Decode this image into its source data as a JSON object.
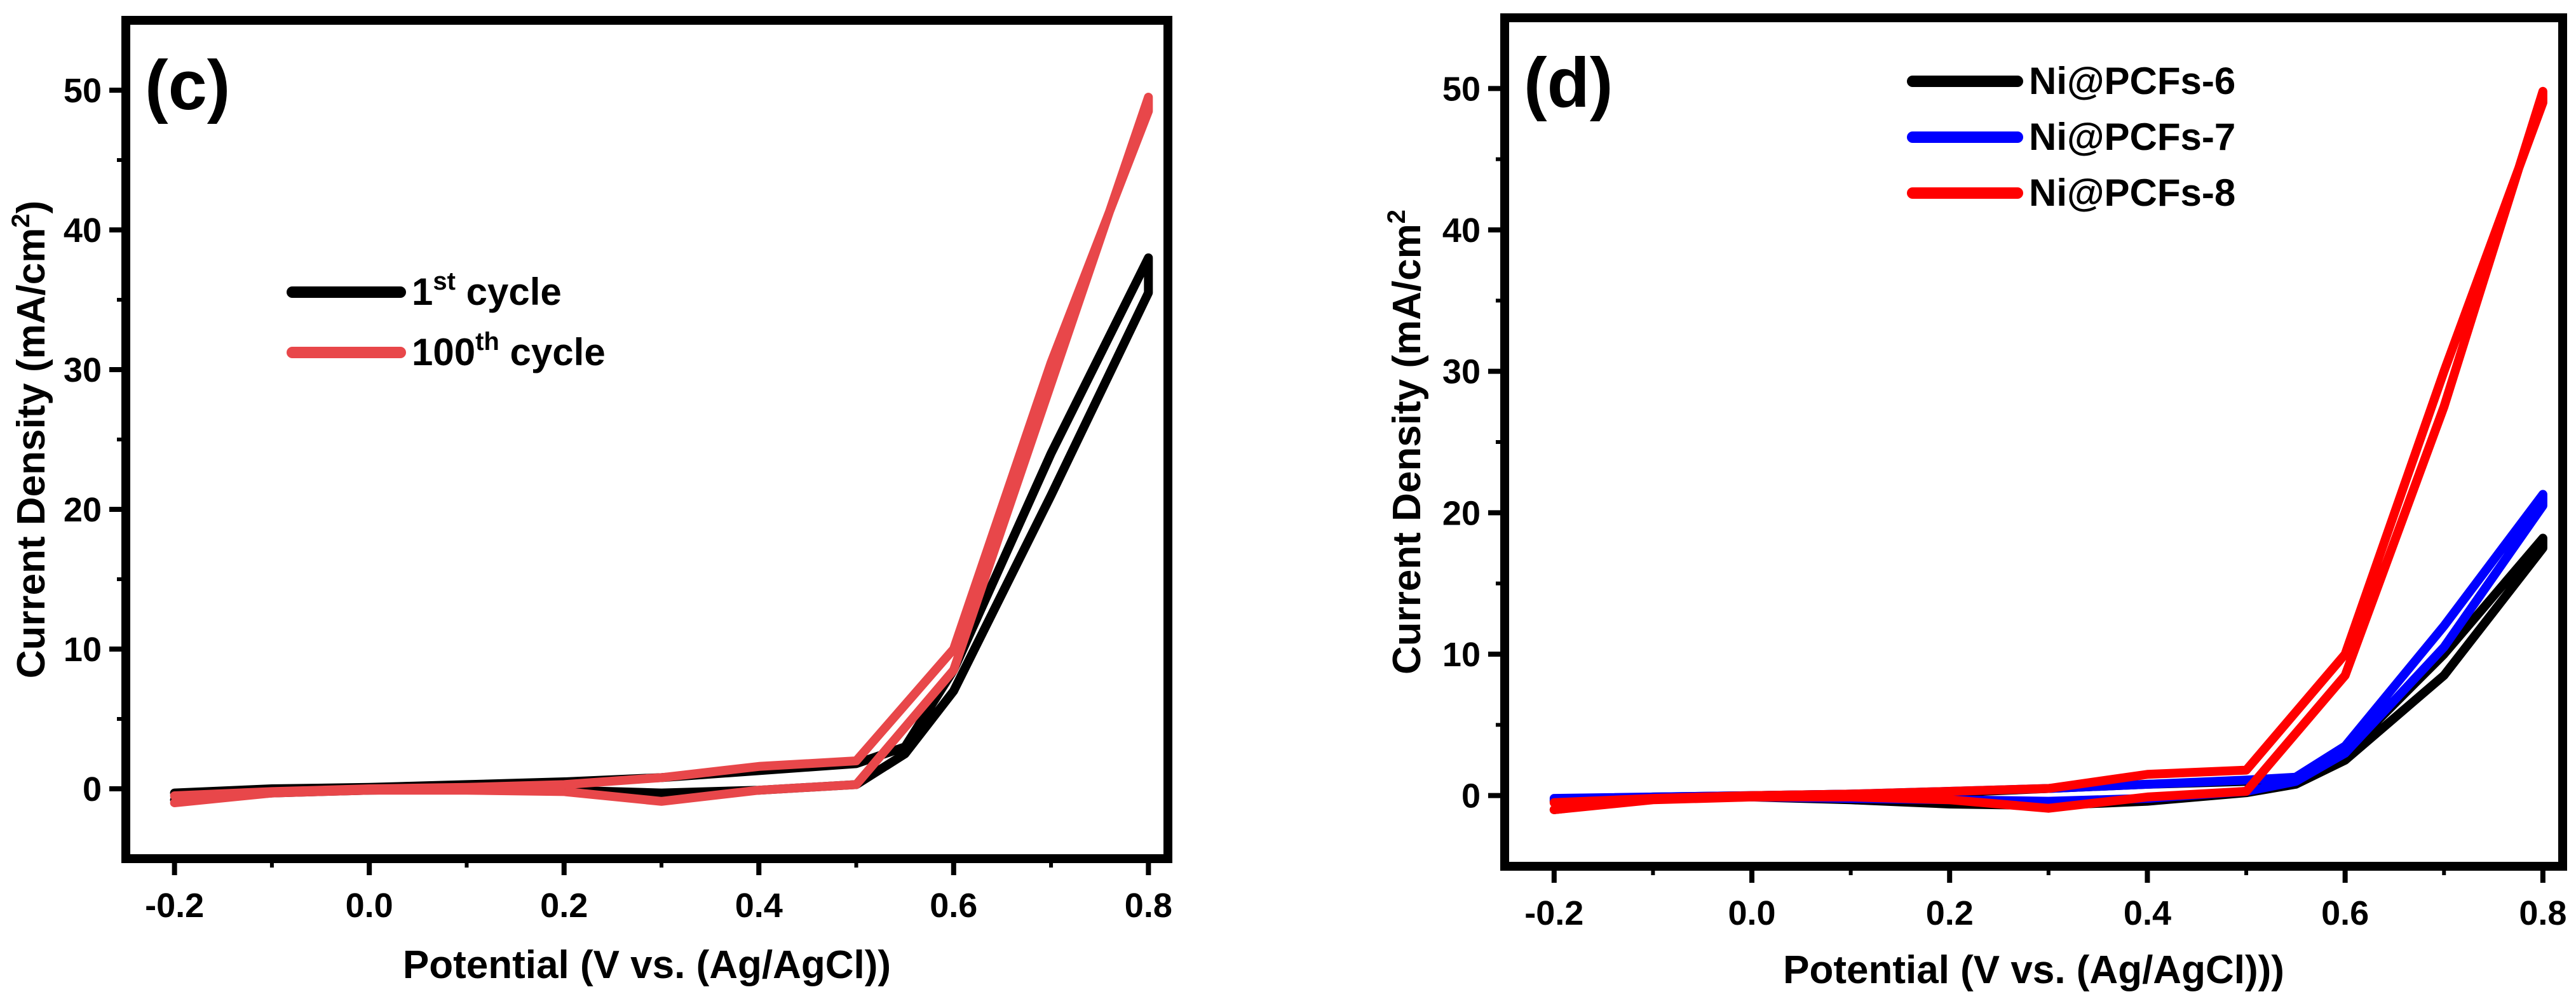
{
  "colors": {
    "black": "#000000",
    "red_c": "#e8474a",
    "blue": "#0000ff",
    "red_d": "#ff0000"
  },
  "chart_data": [
    {
      "type": "line",
      "panel_label": "(c)",
      "title": "",
      "xlabel": "Potential (V  vs. (Ag/AgCl))",
      "ylabel_main": "Current  Density (mA/cm",
      "ylabel_sup": "2",
      "ylabel_tail": ")",
      "xlim": [
        -0.25,
        0.82
      ],
      "ylim": [
        -5,
        55
      ],
      "xticks": [
        -0.2,
        0.0,
        0.2,
        0.4,
        0.6,
        0.8
      ],
      "xtick_labels": [
        "-0.2",
        "0.0",
        "0.2",
        "0.4",
        "0.6",
        "0.8"
      ],
      "yticks": [
        0,
        10,
        20,
        30,
        40,
        50
      ],
      "ytick_labels": [
        "0",
        "10",
        "20",
        "30",
        "40",
        "50"
      ],
      "legend_position": "upper-left",
      "series": [
        {
          "name": "1st cycle",
          "label_main": "1",
          "label_sup": "st",
          "label_tail": " cycle",
          "color": "#000000",
          "x": [
            -0.2,
            -0.1,
            0.0,
            0.1,
            0.2,
            0.3,
            0.4,
            0.5,
            0.55,
            0.6,
            0.7,
            0.8,
            0.8,
            0.7,
            0.6,
            0.55,
            0.5,
            0.4,
            0.3,
            0.2,
            0.1,
            0.0,
            -0.1,
            -0.2
          ],
          "y": [
            -0.8,
            -0.3,
            -0.1,
            0.0,
            -0.1,
            -0.3,
            -0.1,
            0.3,
            2.5,
            7.0,
            21.0,
            35.5,
            38.0,
            24.0,
            8.5,
            3.0,
            1.8,
            1.3,
            0.8,
            0.5,
            0.3,
            0.1,
            0.0,
            -0.3
          ]
        },
        {
          "name": "100th cycle",
          "label_main": "100",
          "label_sup": "th",
          "label_tail": " cycle",
          "color": "#e8474a",
          "x": [
            -0.2,
            -0.1,
            0.0,
            0.1,
            0.2,
            0.3,
            0.4,
            0.5,
            0.6,
            0.7,
            0.8,
            0.8,
            0.7,
            0.6,
            0.5,
            0.4,
            0.3,
            0.2,
            0.1,
            0.0,
            -0.1,
            -0.2
          ],
          "y": [
            -1.0,
            -0.3,
            -0.1,
            -0.1,
            -0.2,
            -0.9,
            -0.1,
            0.3,
            8.5,
            29.0,
            49.5,
            48.5,
            30.5,
            10.0,
            2.0,
            1.6,
            0.8,
            0.3,
            0.1,
            0.0,
            -0.2,
            -0.5
          ]
        }
      ]
    },
    {
      "type": "line",
      "panel_label": "(d)",
      "title": "",
      "xlabel": "Potential (V  vs. (Ag/AgCl)))",
      "ylabel_main": "Current  Density (mA/cm",
      "ylabel_sup": "2",
      "ylabel_tail": "",
      "xlim": [
        -0.25,
        0.82
      ],
      "ylim": [
        -5,
        55
      ],
      "xticks": [
        -0.2,
        0.0,
        0.2,
        0.4,
        0.6,
        0.8
      ],
      "xtick_labels": [
        "-0.2",
        "0.0",
        "0.2",
        "0.4",
        "0.6",
        "0.8"
      ],
      "yticks": [
        0,
        10,
        20,
        30,
        40,
        50
      ],
      "ytick_labels": [
        "0",
        "10",
        "20",
        "30",
        "40",
        "50"
      ],
      "legend_position": "top-center",
      "series": [
        {
          "name": "Ni@PCFs-6",
          "label_main": "Ni@PCFs-6",
          "label_sup": "",
          "label_tail": "",
          "color": "#000000",
          "x": [
            -0.2,
            -0.1,
            0.0,
            0.1,
            0.2,
            0.3,
            0.4,
            0.5,
            0.55,
            0.6,
            0.7,
            0.8,
            0.8,
            0.7,
            0.6,
            0.55,
            0.5,
            0.4,
            0.3,
            0.2,
            0.1,
            0.0,
            -0.1,
            -0.2
          ],
          "y": [
            -1.0,
            -0.2,
            -0.1,
            -0.3,
            -0.6,
            -0.7,
            -0.4,
            0.2,
            0.8,
            2.5,
            8.5,
            17.5,
            18.2,
            10.0,
            3.0,
            1.2,
            1.0,
            0.8,
            0.5,
            0.2,
            0.1,
            0.0,
            -0.1,
            -0.4
          ]
        },
        {
          "name": "Ni@PCFs-7",
          "label_main": "Ni@PCFs-7",
          "label_sup": "",
          "label_tail": "",
          "color": "#0000ff",
          "x": [
            -0.2,
            -0.1,
            0.0,
            0.1,
            0.2,
            0.3,
            0.4,
            0.5,
            0.55,
            0.6,
            0.7,
            0.8,
            0.8,
            0.7,
            0.6,
            0.55,
            0.5,
            0.4,
            0.3,
            0.2,
            0.1,
            0.0,
            -0.1,
            -0.2
          ],
          "y": [
            -0.3,
            -0.1,
            -0.1,
            -0.2,
            -0.3,
            -0.4,
            -0.2,
            0.3,
            1.0,
            3.0,
            10.5,
            20.5,
            21.3,
            12.0,
            3.5,
            1.3,
            1.1,
            0.8,
            0.5,
            0.3,
            0.1,
            0.0,
            -0.1,
            -0.2
          ]
        },
        {
          "name": "Ni@PCFs-8",
          "label_main": "Ni@PCFs-8",
          "label_sup": "",
          "label_tail": "",
          "color": "#ff0000",
          "x": [
            -0.2,
            -0.1,
            0.0,
            0.1,
            0.2,
            0.3,
            0.4,
            0.5,
            0.6,
            0.7,
            0.8,
            0.8,
            0.7,
            0.6,
            0.5,
            0.4,
            0.3,
            0.2,
            0.1,
            0.0,
            -0.1,
            -0.2
          ],
          "y": [
            -1.0,
            -0.3,
            -0.1,
            -0.1,
            -0.3,
            -0.9,
            -0.1,
            0.3,
            8.5,
            27.5,
            49.8,
            49.0,
            30.0,
            10.0,
            1.8,
            1.5,
            0.5,
            0.3,
            0.1,
            0.0,
            -0.2,
            -0.5
          ]
        }
      ]
    }
  ]
}
